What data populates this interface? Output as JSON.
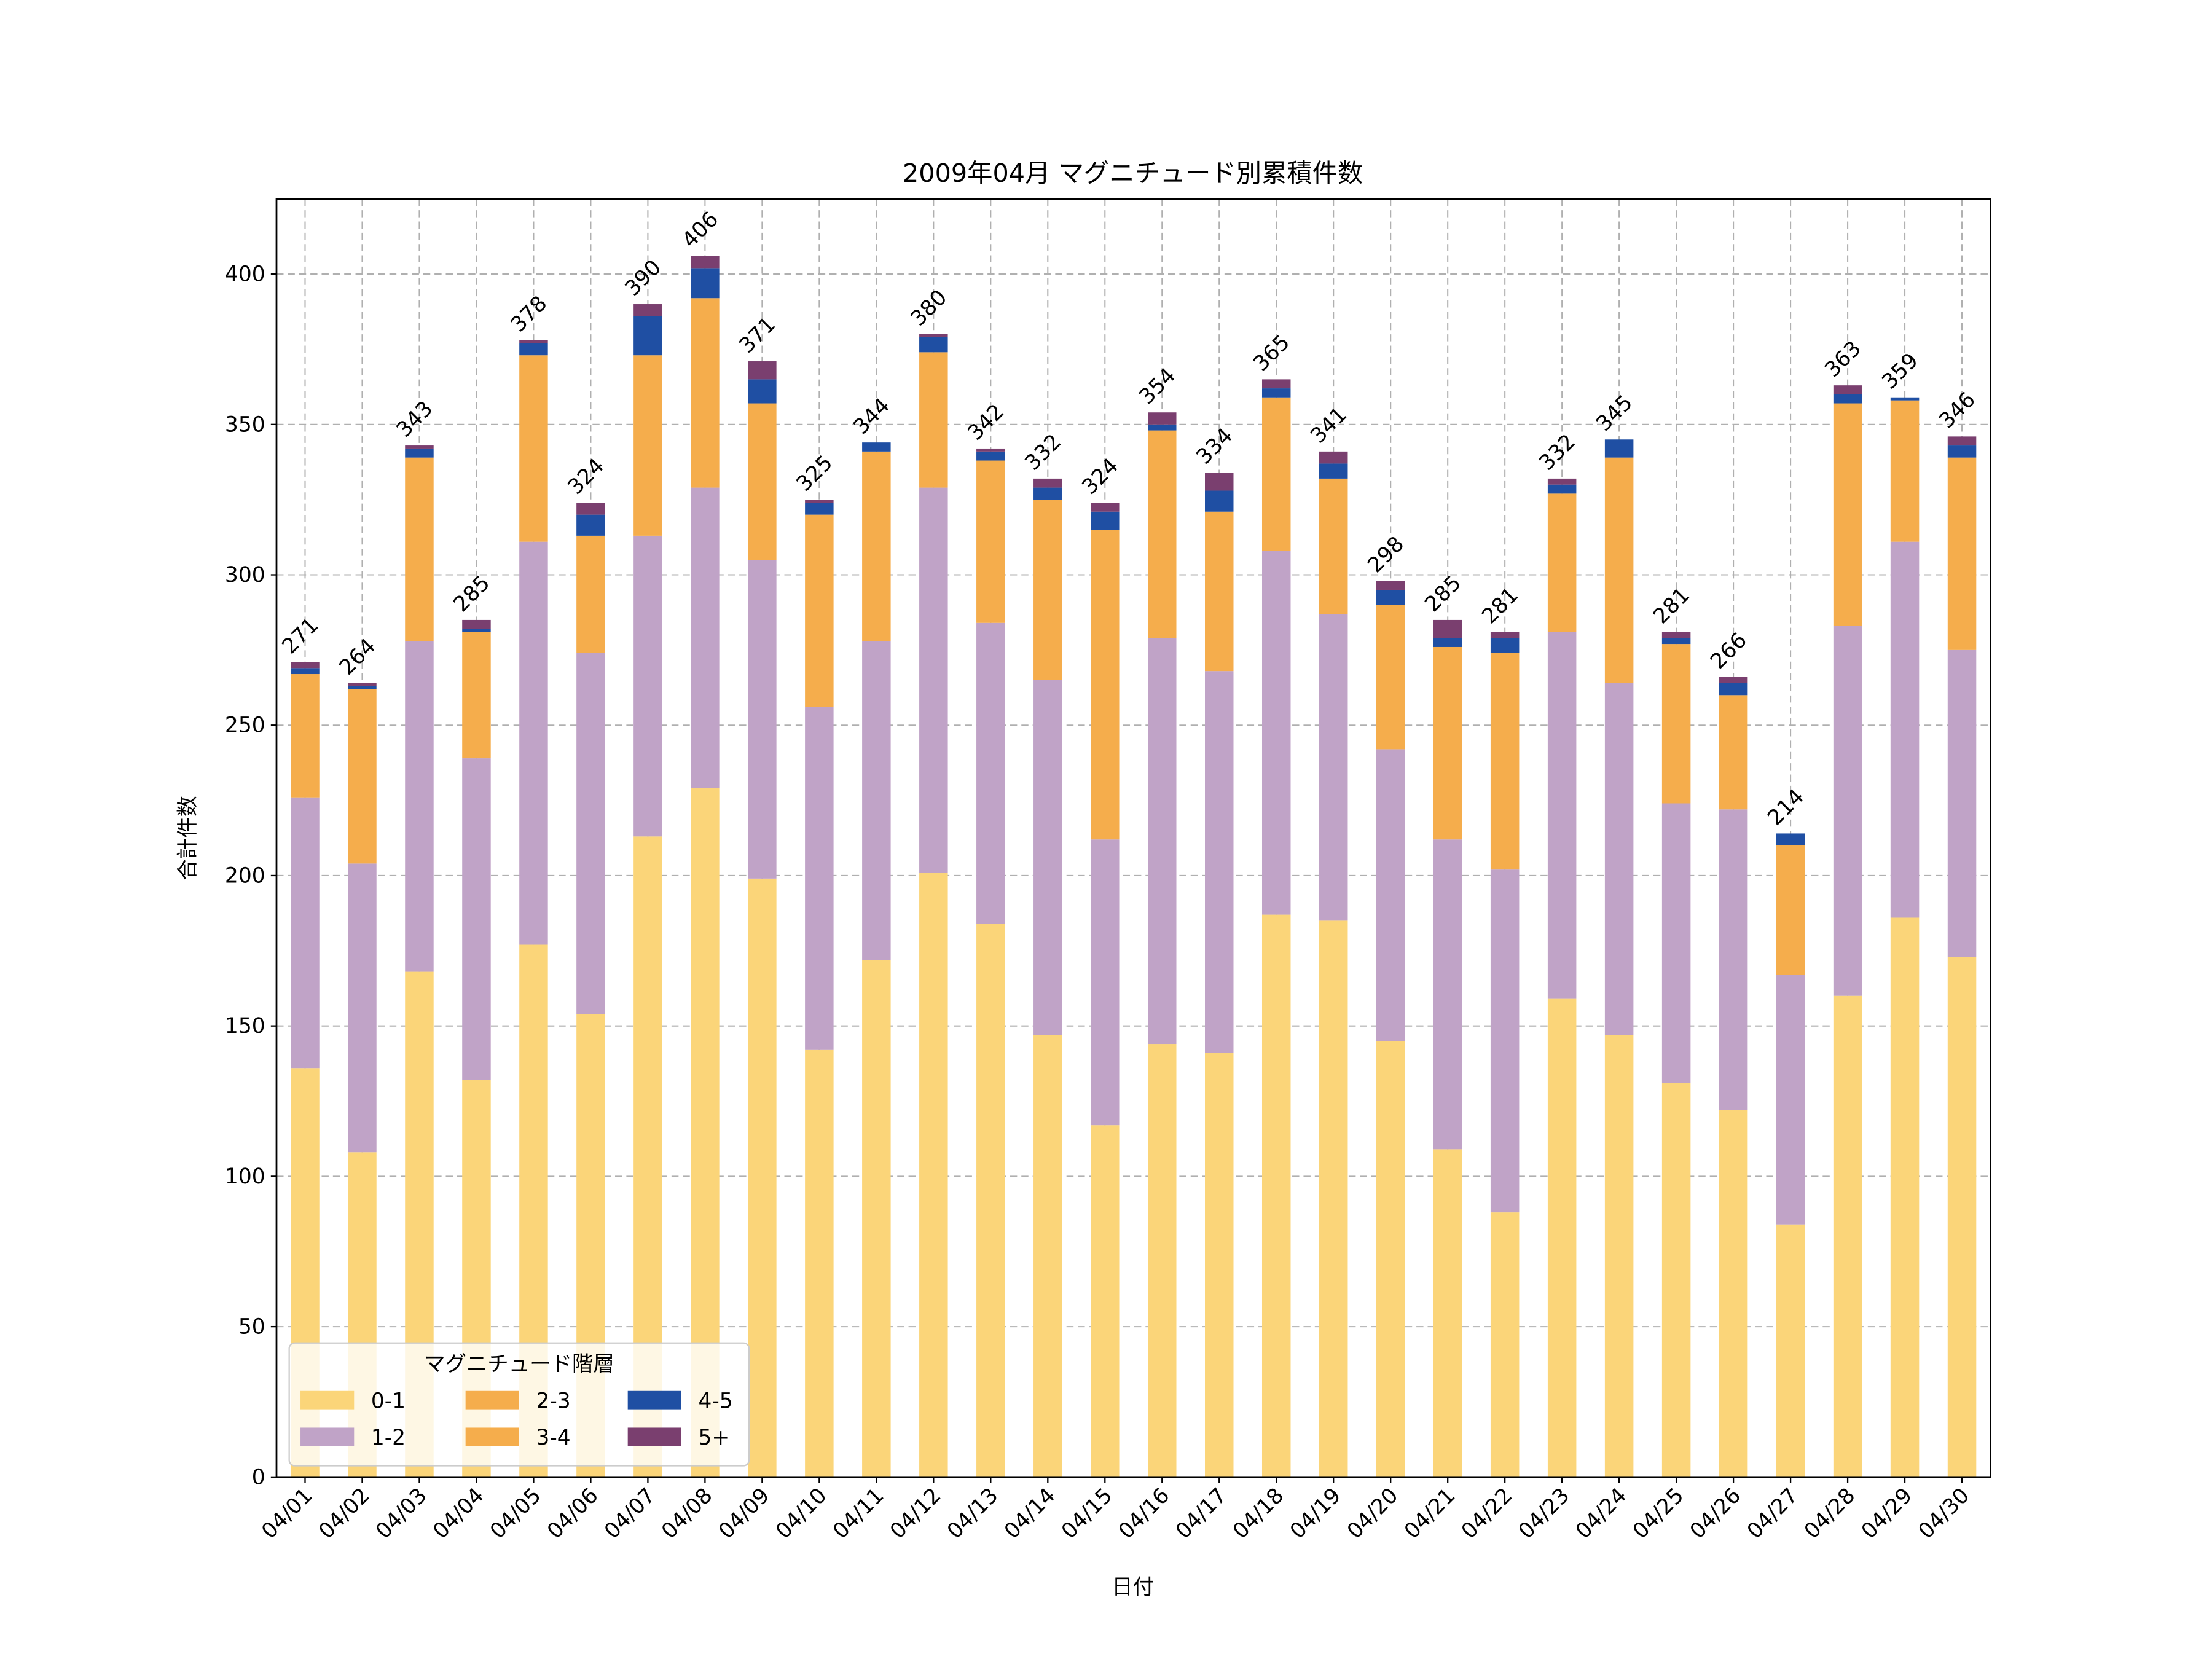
{
  "chart_data": {
    "type": "bar",
    "stacked": true,
    "title": "2009年04月 マグニチュード別累積件数",
    "xlabel": "日付",
    "ylabel": "合計件数",
    "ylim": [
      0,
      425
    ],
    "yticks": [
      0,
      50,
      100,
      150,
      200,
      250,
      300,
      350,
      400
    ],
    "grid": true,
    "legend": {
      "title": "マグニチュード階層",
      "placement": "lower-left"
    },
    "categories": [
      "04/01",
      "04/02",
      "04/03",
      "04/04",
      "04/05",
      "04/06",
      "04/07",
      "04/08",
      "04/09",
      "04/10",
      "04/11",
      "04/12",
      "04/13",
      "04/14",
      "04/15",
      "04/16",
      "04/17",
      "04/18",
      "04/19",
      "04/20",
      "04/21",
      "04/22",
      "04/23",
      "04/24",
      "04/25",
      "04/26",
      "04/27",
      "04/28",
      "04/29",
      "04/30"
    ],
    "series": [
      {
        "name": "0-1",
        "color": "#fbd579",
        "values": [
          136,
          108,
          168,
          132,
          177,
          154,
          213,
          229,
          199,
          142,
          172,
          201,
          184,
          147,
          117,
          144,
          141,
          187,
          185,
          145,
          109,
          88,
          159,
          147,
          131,
          122,
          84,
          160,
          186,
          173
        ]
      },
      {
        "name": "1-2",
        "color": "#c0a3c7",
        "values": [
          90,
          96,
          110,
          107,
          134,
          120,
          100,
          100,
          106,
          114,
          106,
          128,
          100,
          118,
          95,
          135,
          127,
          121,
          102,
          97,
          103,
          114,
          122,
          117,
          93,
          100,
          83,
          123,
          125,
          102
        ]
      },
      {
        "name": "2-3",
        "color": "#f5ad4c",
        "values": [
          41,
          58,
          61,
          42,
          62,
          39,
          60,
          63,
          52,
          64,
          63,
          45,
          54,
          60,
          103,
          69,
          53,
          51,
          45,
          48,
          64,
          72,
          46,
          75,
          53,
          38,
          43,
          74,
          47,
          64
        ]
      },
      {
        "name": "3-4",
        "color": "#f5ad4c",
        "values": [
          0,
          0,
          0,
          0,
          0,
          0,
          0,
          0,
          0,
          0,
          0,
          0,
          0,
          0,
          0,
          0,
          0,
          0,
          0,
          0,
          0,
          0,
          0,
          0,
          0,
          0,
          0,
          0,
          0,
          0
        ]
      },
      {
        "name": "4-5",
        "color": "#1f4fa3",
        "values": [
          2,
          1,
          3,
          1,
          4,
          7,
          13,
          10,
          8,
          4,
          3,
          5,
          3,
          4,
          6,
          2,
          7,
          3,
          5,
          5,
          3,
          5,
          3,
          6,
          2,
          4,
          4,
          3,
          1,
          4
        ]
      },
      {
        "name": "5+",
        "color": "#7a3f6f",
        "values": [
          2,
          1,
          1,
          3,
          1,
          4,
          4,
          4,
          6,
          1,
          0,
          1,
          1,
          3,
          3,
          4,
          6,
          3,
          4,
          3,
          6,
          2,
          2,
          0,
          2,
          2,
          0,
          3,
          0,
          3
        ]
      }
    ],
    "totals": [
      271,
      264,
      343,
      285,
      378,
      324,
      390,
      406,
      371,
      325,
      344,
      380,
      342,
      332,
      324,
      354,
      334,
      365,
      341,
      298,
      285,
      281,
      332,
      345,
      281,
      266,
      214,
      363,
      359,
      346
    ]
  }
}
